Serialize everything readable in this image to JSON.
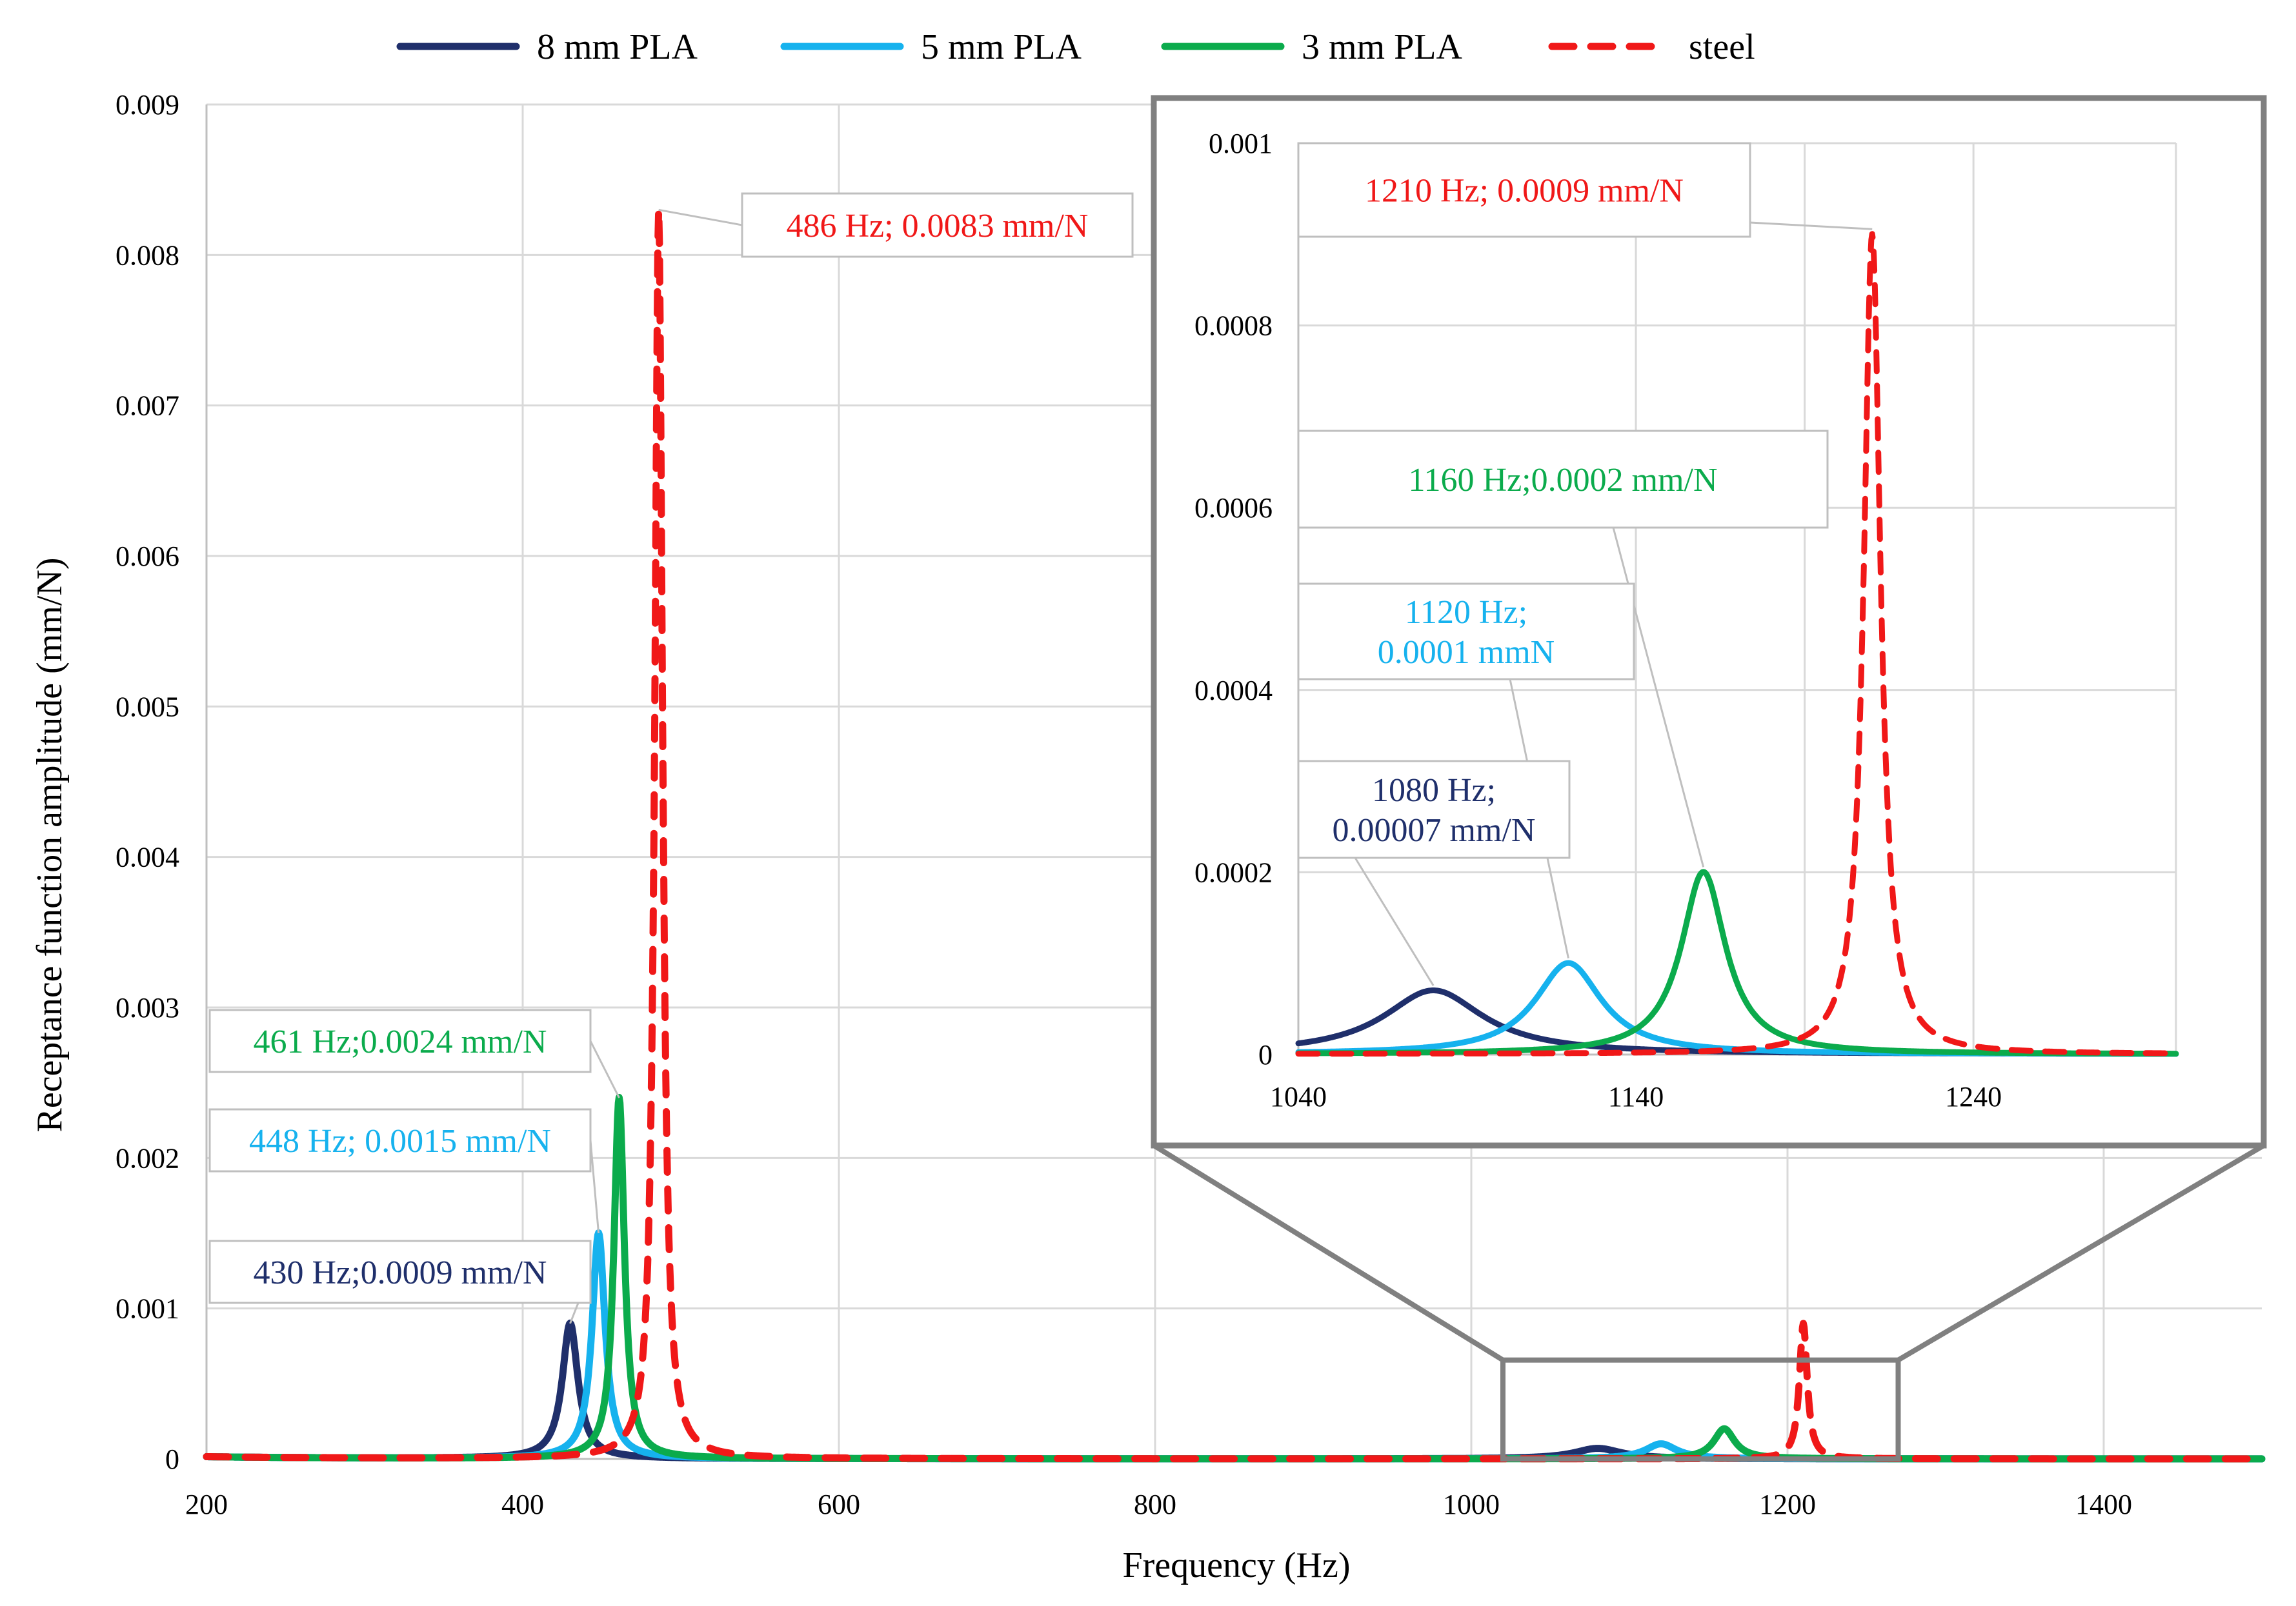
{
  "colors": {
    "pla8": "#1f2f6b",
    "pla5": "#16b2ee",
    "pla3": "#0bab4c",
    "steel": "#f01818",
    "grid": "#d9d9d9",
    "frame": "#808080"
  },
  "chart_data": [
    {
      "type": "line",
      "id": "main",
      "xlabel": "Frequency (Hz)",
      "ylabel": "Receptance function amplitude (mm/N)",
      "xlim": [
        200,
        1500
      ],
      "ylim": [
        0,
        0.009
      ],
      "xticks": [
        "200",
        "400",
        "600",
        "800",
        "1000",
        "1200",
        "1400"
      ],
      "yticks": [
        "0",
        "0.001",
        "0.002",
        "0.003",
        "0.004",
        "0.005",
        "0.006",
        "0.007",
        "0.008",
        "0.009"
      ],
      "grid": true,
      "legend": {
        "position": "top",
        "items": [
          {
            "name": "8 mm PLA",
            "style": "solid"
          },
          {
            "name": "5 mm PLA",
            "style": "solid"
          },
          {
            "name": "3 mm PLA",
            "style": "solid"
          },
          {
            "name": "steel",
            "style": "dashed"
          }
        ]
      },
      "series": [
        {
          "name": "8 mm PLA",
          "peaks": [
            {
              "f": 430,
              "amp": 0.0009,
              "width": 6
            },
            {
              "f": 1080,
              "amp": 7e-05,
              "width": 18
            }
          ]
        },
        {
          "name": "5 mm PLA",
          "peaks": [
            {
              "f": 448,
              "amp": 0.0015,
              "width": 5
            },
            {
              "f": 1120,
              "amp": 0.0001,
              "width": 12
            }
          ]
        },
        {
          "name": "3 mm PLA",
          "peaks": [
            {
              "f": 461,
              "amp": 0.0024,
              "width": 4
            },
            {
              "f": 1160,
              "amp": 0.0002,
              "width": 8
            }
          ]
        },
        {
          "name": "steel",
          "peaks": [
            {
              "f": 486,
              "amp": 0.0083,
              "width": 3
            },
            {
              "f": 1210,
              "amp": 0.0009,
              "width": 3
            }
          ]
        }
      ],
      "annotations": [
        {
          "series": "steel",
          "lines": [
            "486 Hz; 0.0083 mm/N"
          ],
          "f": 486,
          "amp": 0.0083
        },
        {
          "series": "3 mm PLA",
          "lines": [
            "461 Hz;0.0024 mm/N"
          ],
          "f": 461,
          "amp": 0.0024
        },
        {
          "series": "5 mm PLA",
          "lines": [
            "448 Hz; 0.0015 mm/N"
          ],
          "f": 448,
          "amp": 0.0015
        },
        {
          "series": "8 mm PLA",
          "lines": [
            "430 Hz;0.0009 mm/N"
          ],
          "f": 430,
          "amp": 0.0009
        }
      ],
      "zoom_region": {
        "xlim": [
          1020,
          1270
        ],
        "ylim": [
          0,
          0.0001
        ]
      }
    },
    {
      "type": "line",
      "id": "inset",
      "xlim": [
        1040,
        1300
      ],
      "ylim": [
        0,
        0.001
      ],
      "xticks": [
        "1040",
        "1140",
        "1240"
      ],
      "yticks": [
        "0",
        "0.0002",
        "0.0004",
        "0.0006",
        "0.0008",
        "0.001"
      ],
      "grid": true,
      "annotations": [
        {
          "series": "steel",
          "lines": [
            "1210 Hz; 0.0009 mm/N"
          ],
          "f": 1210,
          "amp": 0.0009
        },
        {
          "series": "3 mm PLA",
          "lines": [
            "1160 Hz;0.0002 mm/N"
          ],
          "f": 1160,
          "amp": 0.0002
        },
        {
          "series": "5 mm PLA",
          "lines": [
            "1120 Hz;",
            "0.0001 mmN"
          ],
          "f": 1120,
          "amp": 0.0001
        },
        {
          "series": "8 mm PLA",
          "lines": [
            "1080 Hz;",
            "0.00007 mm/N"
          ],
          "f": 1080,
          "amp": 7e-05
        }
      ]
    }
  ]
}
